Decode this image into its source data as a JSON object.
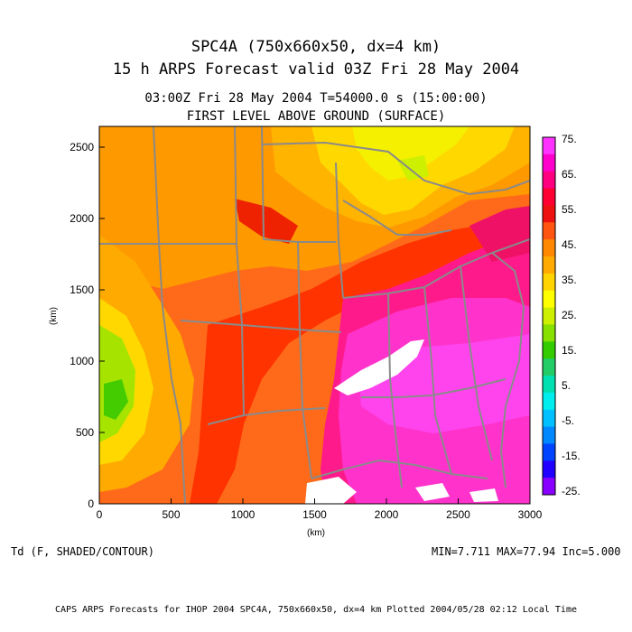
{
  "header": {
    "line1": "SPC4A (750x660x50, dx=4 km)",
    "line2": "15 h ARPS Forecast valid 03Z Fri 28 May 2004",
    "line3": "03:00Z Fri 28 May 2004     T=54000.0 s (15:00:00)",
    "line4": "FIRST LEVEL ABOVE GROUND (SURFACE)"
  },
  "axes": {
    "x_label": "(km)",
    "y_label": "(km)",
    "x_ticks": [
      "0",
      "500",
      "1000",
      "1500",
      "2000",
      "2500",
      "3000"
    ],
    "y_ticks": [
      "0",
      "500",
      "1000",
      "1500",
      "2000",
      "2500"
    ],
    "x_range": [
      0,
      3000
    ],
    "y_range": [
      0,
      2640
    ]
  },
  "colorbar": {
    "labels": [
      "75.",
      "65.",
      "55.",
      "45.",
      "35.",
      "25.",
      "15.",
      "5.",
      "-5.",
      "-15.",
      "-25."
    ],
    "colors": [
      "#ff33ff",
      "#ff00cc",
      "#ff0080",
      "#ff0033",
      "#ee1111",
      "#ff5511",
      "#ff8800",
      "#ffaa00",
      "#ffd400",
      "#ffff00",
      "#ccf000",
      "#88e000",
      "#33cc00",
      "#22cc66",
      "#00e0b0",
      "#00eeee",
      "#00c0ff",
      "#0088ff",
      "#0044ff",
      "#2200ff",
      "#8800ff"
    ]
  },
  "footer": {
    "variable": "Td (F, SHADED/CONTOUR)",
    "stats": "MIN=7.711  MAX=77.94  Inc=5.000",
    "credit": "CAPS ARPS Forecasts for IHOP 2004   SPC4A, 750x660x50, dx=4 km   Plotted 2004/05/28 02:12 Local Time"
  }
}
